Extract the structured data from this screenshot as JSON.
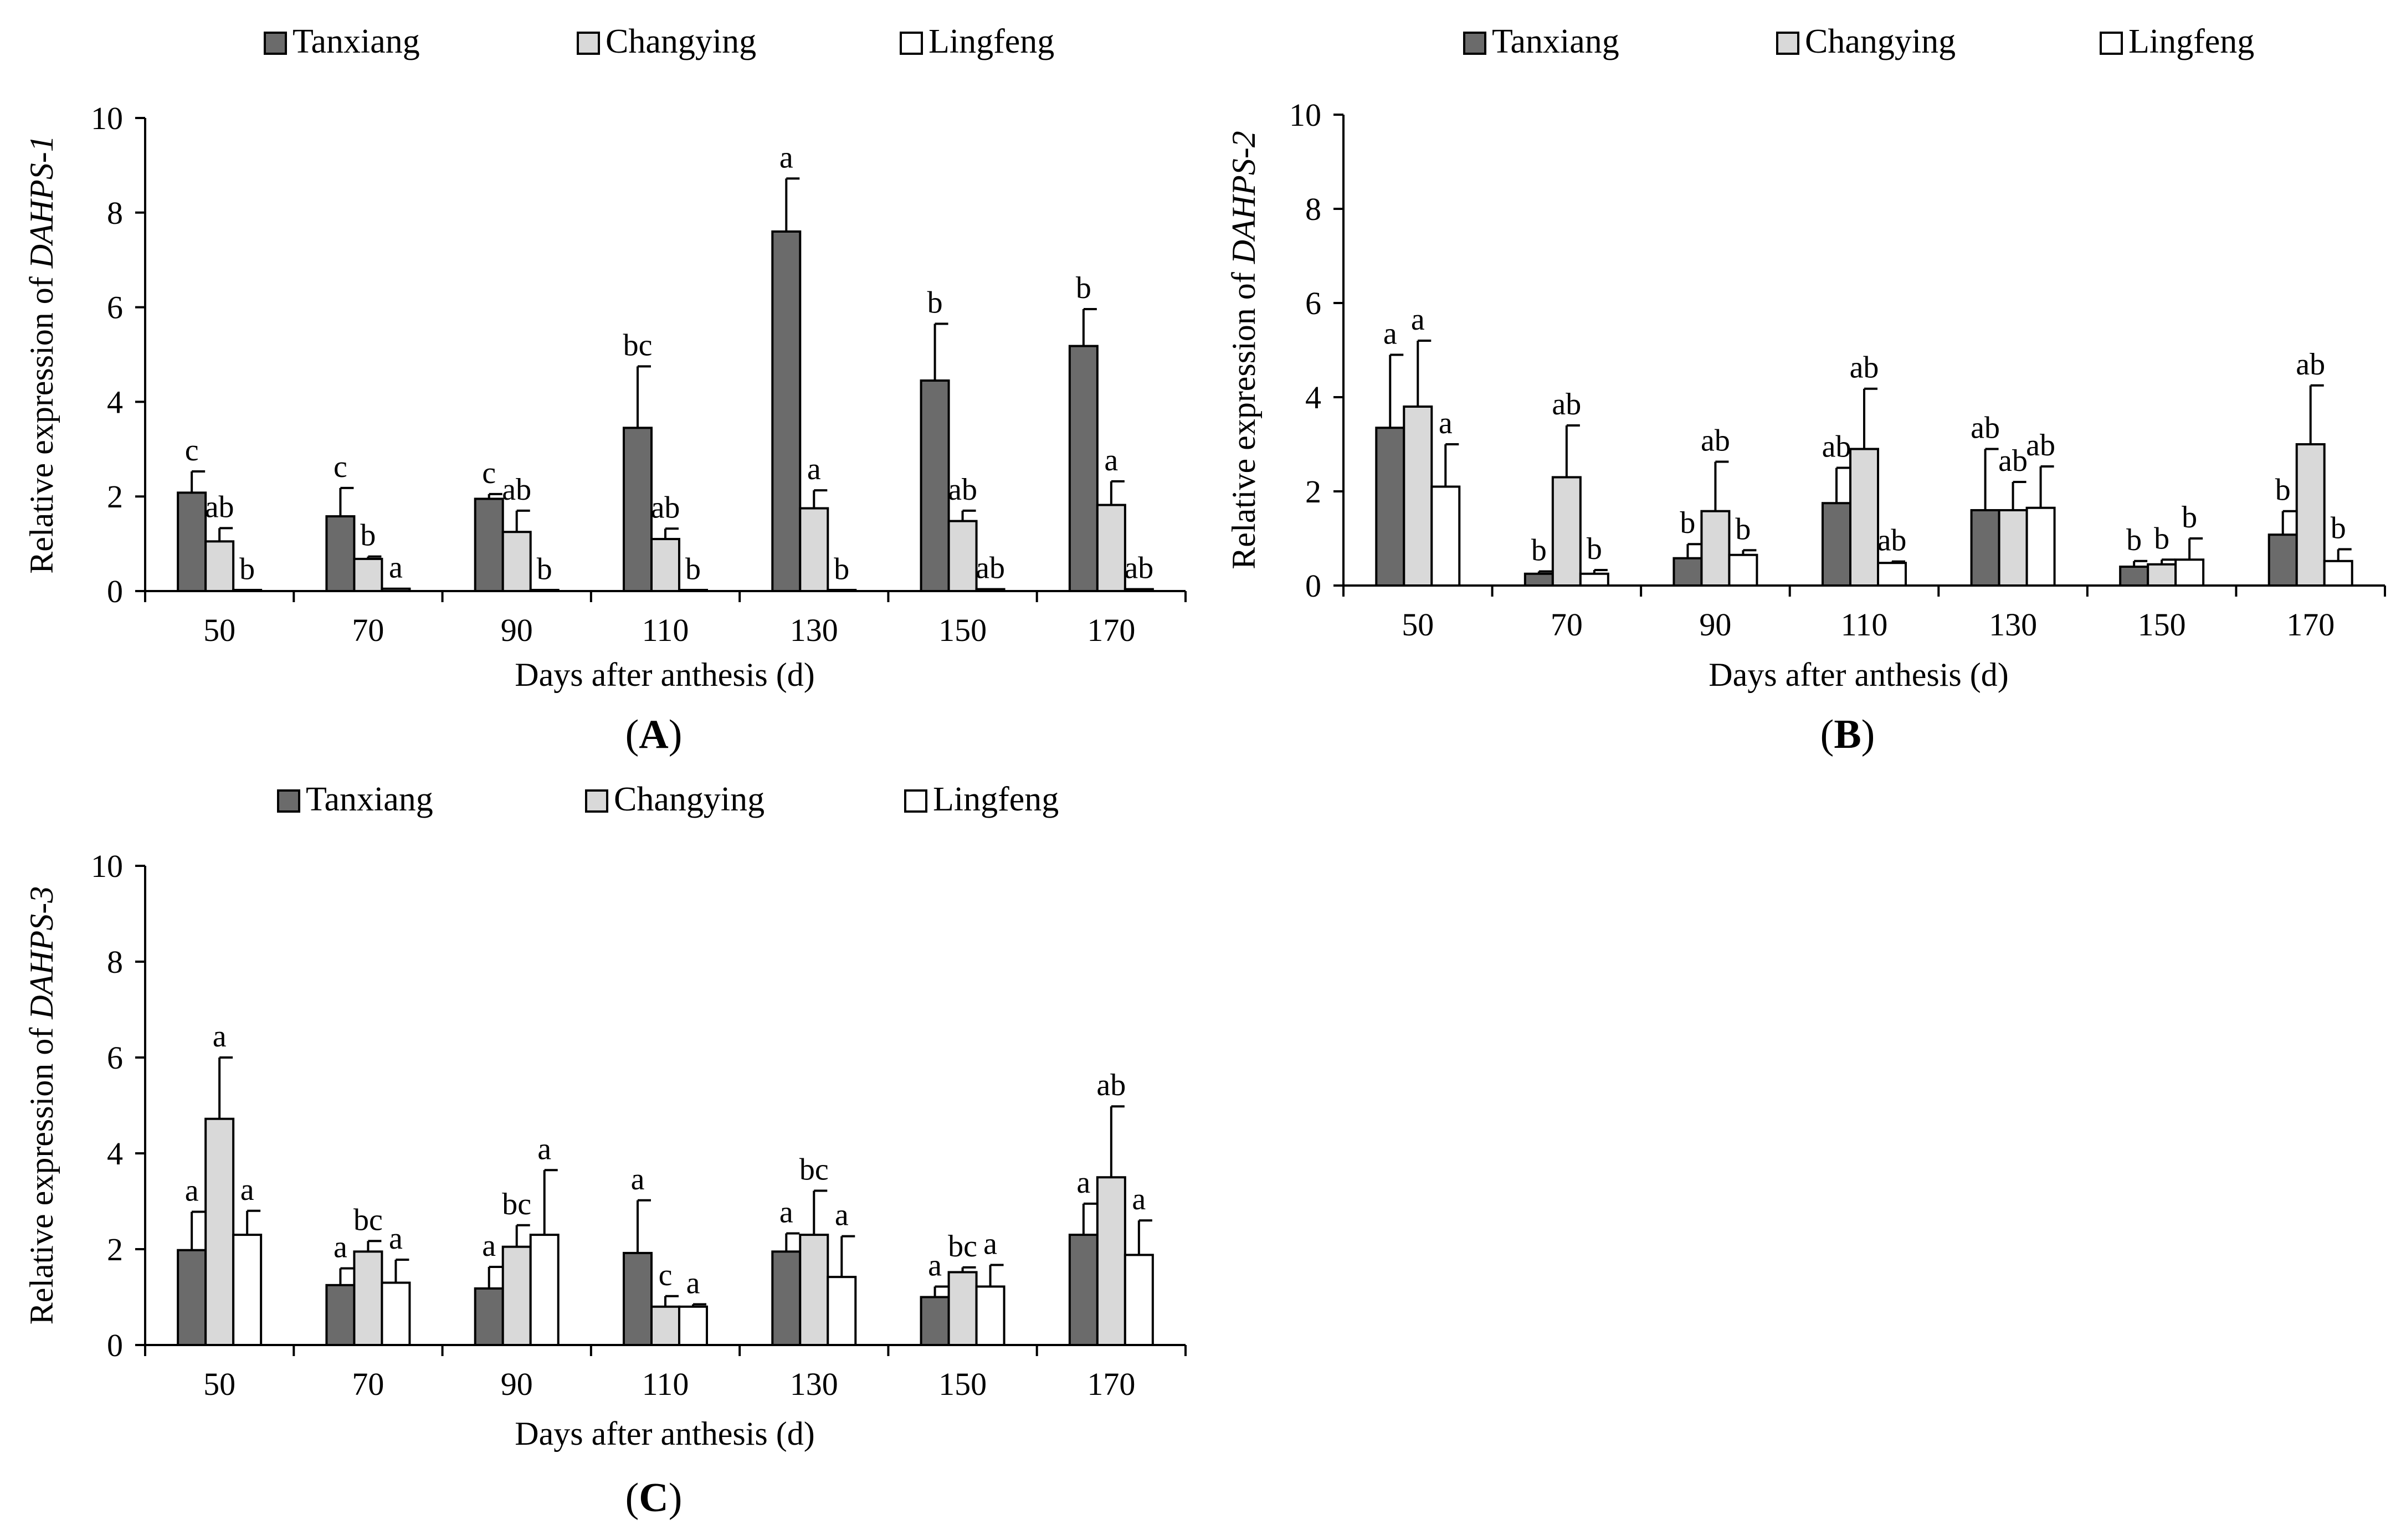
{
  "figure": {
    "series_colors": {
      "Tanxiang": "#6b6b6b",
      "Changying": "#d9d9d9",
      "Lingfeng": "#ffffff"
    }
  },
  "chart_data": [
    {
      "id": "A",
      "type": "bar",
      "panel_label": "A",
      "xlabel": "Days after anthesis (d)",
      "ylabel_prefix": "Relative expression of ",
      "ylabel_gene": "DAHPS-1",
      "ylim": [
        0,
        10
      ],
      "yticks": [
        0,
        2,
        4,
        6,
        8,
        10
      ],
      "categories": [
        "50",
        "70",
        "90",
        "110",
        "130",
        "150",
        "170"
      ],
      "legend": [
        "Tanxiang",
        "Changying",
        "Lingfeng"
      ],
      "series": [
        {
          "name": "Tanxiang",
          "values": [
            2.08,
            1.58,
            1.95,
            3.45,
            7.6,
            4.45,
            5.18
          ],
          "errors": [
            0.45,
            0.6,
            0.1,
            1.3,
            1.12,
            1.2,
            0.78
          ],
          "labels": [
            "c",
            "c",
            "c",
            "bc",
            "a",
            "b",
            "b"
          ]
        },
        {
          "name": "Changying",
          "values": [
            1.05,
            0.68,
            1.25,
            1.1,
            1.75,
            1.48,
            1.82
          ],
          "errors": [
            0.28,
            0.05,
            0.45,
            0.22,
            0.38,
            0.22,
            0.5
          ],
          "labels": [
            "ab",
            "b",
            "ab",
            "ab",
            "a",
            "ab",
            "a"
          ]
        },
        {
          "name": "Lingfeng",
          "values": [
            0.02,
            0.05,
            0.02,
            0.02,
            0.02,
            0.04,
            0.04
          ],
          "errors": [
            0,
            0,
            0,
            0,
            0,
            0,
            0
          ],
          "labels": [
            "b",
            "a",
            "b",
            "b",
            "b",
            "ab",
            "ab"
          ]
        }
      ]
    },
    {
      "id": "B",
      "type": "bar",
      "panel_label": "B",
      "xlabel": "Days after anthesis (d)",
      "ylabel_prefix": "Relative expression of ",
      "ylabel_gene": "DAHPS-2",
      "ylim": [
        0,
        10
      ],
      "yticks": [
        0,
        2,
        4,
        6,
        8,
        10
      ],
      "categories": [
        "50",
        "70",
        "90",
        "110",
        "130",
        "150",
        "170"
      ],
      "legend": [
        "Tanxiang",
        "Changying",
        "Lingfeng"
      ],
      "series": [
        {
          "name": "Tanxiang",
          "values": [
            3.35,
            0.25,
            0.58,
            1.75,
            1.6,
            0.4,
            1.08
          ],
          "errors": [
            1.55,
            0.05,
            0.3,
            0.75,
            1.3,
            0.12,
            0.5
          ],
          "labels": [
            "a",
            "b",
            "b",
            "ab",
            "ab",
            "b",
            "b"
          ]
        },
        {
          "name": "Changying",
          "values": [
            3.8,
            2.3,
            1.58,
            2.9,
            1.6,
            0.45,
            3.0
          ],
          "errors": [
            1.4,
            1.1,
            1.05,
            1.28,
            0.6,
            0.1,
            1.25
          ],
          "labels": [
            "a",
            "ab",
            "ab",
            "ab",
            "ab",
            "b",
            "ab"
          ]
        },
        {
          "name": "Lingfeng",
          "values": [
            2.1,
            0.25,
            0.65,
            0.48,
            1.65,
            0.55,
            0.52
          ],
          "errors": [
            0.9,
            0.08,
            0.1,
            0.03,
            0.88,
            0.45,
            0.25
          ],
          "labels": [
            "a",
            "b",
            "b",
            "ab",
            "ab",
            "b",
            "b"
          ]
        }
      ]
    },
    {
      "id": "C",
      "type": "bar",
      "panel_label": "C",
      "xlabel": "Days after anthesis (d)",
      "ylabel_prefix": "Relative expression of ",
      "ylabel_gene": "DAHPS-3",
      "ylim": [
        0,
        10
      ],
      "yticks": [
        0,
        2,
        4,
        6,
        8,
        10
      ],
      "categories": [
        "50",
        "70",
        "90",
        "110",
        "130",
        "150",
        "170"
      ],
      "legend": [
        "Tanxiang",
        "Changying",
        "Lingfeng"
      ],
      "series": [
        {
          "name": "Tanxiang",
          "values": [
            1.98,
            1.25,
            1.18,
            1.92,
            1.95,
            1.0,
            2.3
          ],
          "errors": [
            0.8,
            0.35,
            0.45,
            1.1,
            0.38,
            0.22,
            0.65
          ],
          "labels": [
            "a",
            "a",
            "a",
            "a",
            "a",
            "a",
            "a"
          ]
        },
        {
          "name": "Changying",
          "values": [
            4.72,
            1.95,
            2.05,
            0.8,
            2.3,
            1.52,
            3.5
          ],
          "errors": [
            1.28,
            0.22,
            0.45,
            0.22,
            0.92,
            0.1,
            1.48
          ],
          "labels": [
            "a",
            "bc",
            "bc",
            "c",
            "bc",
            "bc",
            "ab"
          ]
        },
        {
          "name": "Lingfeng",
          "values": [
            2.3,
            1.3,
            2.3,
            0.8,
            1.42,
            1.22,
            1.88
          ],
          "errors": [
            0.5,
            0.48,
            1.35,
            0.05,
            0.85,
            0.45,
            0.72
          ],
          "labels": [
            "a",
            "a",
            "a",
            "a",
            "a",
            "a",
            "a"
          ]
        }
      ]
    }
  ]
}
